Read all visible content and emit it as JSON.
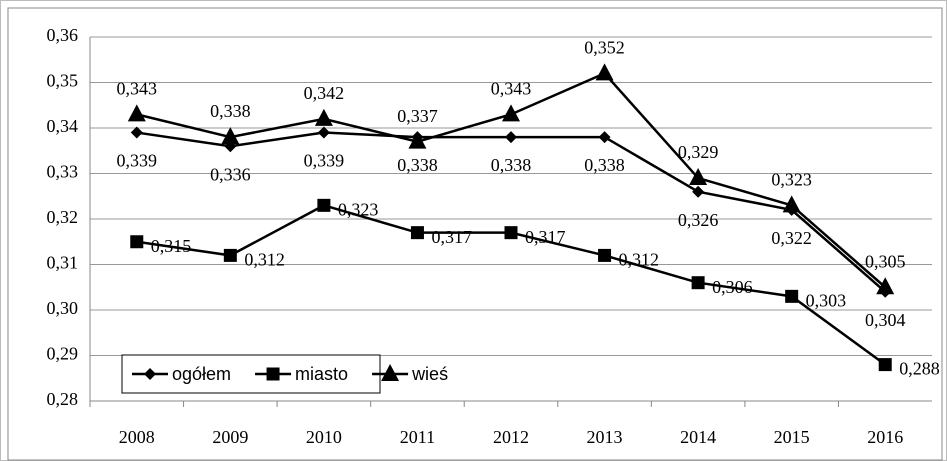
{
  "chart_data": {
    "type": "line",
    "categories": [
      "2008",
      "2009",
      "2010",
      "2011",
      "2012",
      "2013",
      "2014",
      "2015",
      "2016"
    ],
    "series": [
      {
        "name": "ogółem",
        "color": "#000000",
        "marker": "diamond",
        "values": [
          0.339,
          0.336,
          0.339,
          0.338,
          0.338,
          0.338,
          0.326,
          0.322,
          0.304
        ],
        "value_labels": [
          "0,339",
          "0,336",
          "0,339",
          "0,338",
          "0,338",
          "0,338",
          "0,326",
          "0,322",
          "0,304"
        ]
      },
      {
        "name": "miasto",
        "color": "#000000",
        "marker": "square",
        "values": [
          0.315,
          0.312,
          0.323,
          0.317,
          0.317,
          0.312,
          0.306,
          0.303,
          0.288
        ],
        "value_labels": [
          "0,315",
          "0,312",
          "0,323",
          "0,317",
          "0,317",
          "0,312",
          "0,306",
          "0,303",
          "0,288"
        ]
      },
      {
        "name": "wieś",
        "color": "#000000",
        "marker": "triangle",
        "values": [
          0.343,
          0.338,
          0.342,
          0.337,
          0.343,
          0.352,
          0.329,
          0.323,
          0.305
        ],
        "value_labels": [
          "0,343",
          "0,338",
          "0,342",
          "0,337",
          "0,343",
          "0,352",
          "0,329",
          "0,323",
          "0,305"
        ]
      }
    ],
    "ylim": [
      0.28,
      0.36
    ],
    "yticks": [
      {
        "value": 0.28,
        "label": "0,28"
      },
      {
        "value": 0.29,
        "label": "0,29"
      },
      {
        "value": 0.3,
        "label": "0,30"
      },
      {
        "value": 0.31,
        "label": "0,31"
      },
      {
        "value": 0.32,
        "label": "0,32"
      },
      {
        "value": 0.33,
        "label": "0,33"
      },
      {
        "value": 0.34,
        "label": "0,34"
      },
      {
        "value": 0.35,
        "label": "0,35"
      },
      {
        "value": 0.36,
        "label": "0,36"
      }
    ],
    "grid": true,
    "legend": "lower left"
  }
}
